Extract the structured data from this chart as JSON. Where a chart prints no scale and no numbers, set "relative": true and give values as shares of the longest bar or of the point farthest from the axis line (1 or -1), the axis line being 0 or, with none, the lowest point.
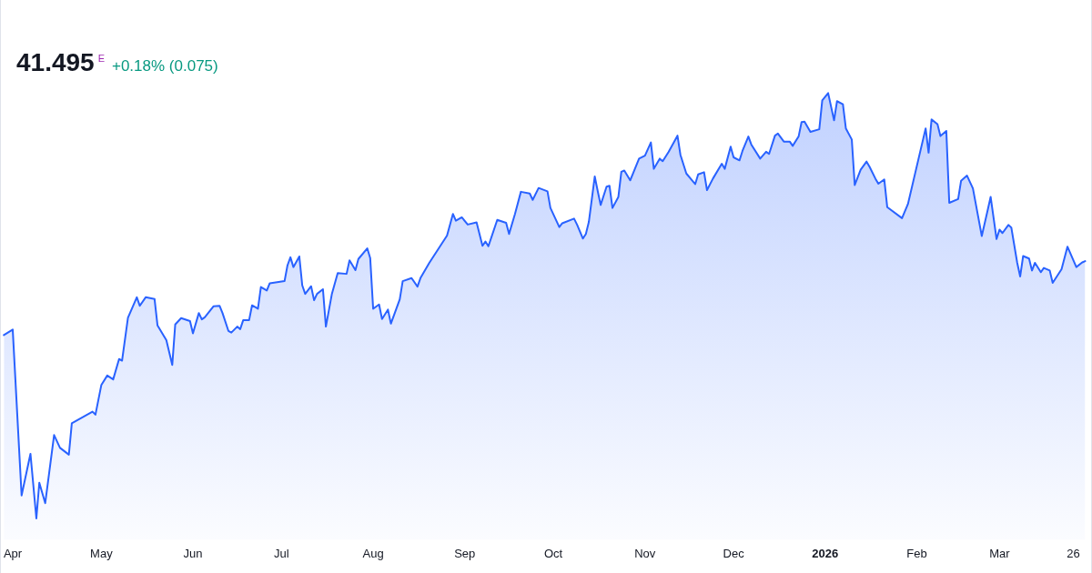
{
  "chart_data": {
    "type": "area",
    "title": "41.495$^{E}$",
    "subtitle": "+0.18% (0.075)",
    "relative": true,
    "color": "#2962ff",
    "xlim": [
      "2025-03-28",
      "2026-04-01"
    ],
    "xticks": [
      {
        "value": "2025-04-01",
        "label": "Apr"
      },
      {
        "value": "2025-05-01",
        "label": "May"
      },
      {
        "value": "2025-06-01",
        "label": "Jun"
      },
      {
        "value": "2025-07-01",
        "label": "Jul"
      },
      {
        "value": "2025-08-01",
        "label": "Aug"
      },
      {
        "value": "2025-09-01",
        "label": "Sep"
      },
      {
        "value": "2025-10-01",
        "label": "Oct"
      },
      {
        "value": "2025-11-01",
        "label": "Nov"
      },
      {
        "value": "2025-12-01",
        "label": "Dec"
      },
      {
        "value": "2026-01-01",
        "label": "2026"
      },
      {
        "value": "2026-02-01",
        "label": "Feb"
      },
      {
        "value": "2026-03-01",
        "label": "Mar"
      },
      {
        "value": "2026-03-26",
        "label": "26"
      }
    ],
    "x": [
      "2025-03-29",
      "2025-04-01",
      "2025-04-04",
      "2025-04-07",
      "2025-04-09",
      "2025-04-10",
      "2025-04-12",
      "2025-04-15",
      "2025-04-17",
      "2025-04-20",
      "2025-04-21",
      "2025-04-28",
      "2025-04-29",
      "2025-05-01",
      "2025-05-03",
      "2025-05-05",
      "2025-05-07",
      "2025-05-08",
      "2025-05-10",
      "2025-05-13",
      "2025-05-14",
      "2025-05-16",
      "2025-05-19",
      "2025-05-20",
      "2025-05-23",
      "2025-05-25",
      "2025-05-26",
      "2025-05-28",
      "2025-05-31",
      "2025-06-01",
      "2025-06-03",
      "2025-06-04",
      "2025-06-05",
      "2025-06-08",
      "2025-06-10",
      "2025-06-11",
      "2025-06-13",
      "2025-06-14",
      "2025-06-16",
      "2025-06-17",
      "2025-06-18",
      "2025-06-20",
      "2025-06-21",
      "2025-06-23",
      "2025-06-24",
      "2025-06-26",
      "2025-06-27",
      "2025-07-02",
      "2025-07-03",
      "2025-07-04",
      "2025-07-05",
      "2025-07-07",
      "2025-07-08",
      "2025-07-09",
      "2025-07-11",
      "2025-07-12",
      "2025-07-13",
      "2025-07-15",
      "2025-07-16",
      "2025-07-18",
      "2025-07-20",
      "2025-07-23",
      "2025-07-24",
      "2025-07-26",
      "2025-07-27",
      "2025-07-30",
      "2025-07-31",
      "2025-08-01",
      "2025-08-03",
      "2025-08-04",
      "2025-08-06",
      "2025-08-07",
      "2025-08-10",
      "2025-08-11",
      "2025-08-14",
      "2025-08-16",
      "2025-08-17",
      "2025-08-20",
      "2025-08-26",
      "2025-08-28",
      "2025-08-29",
      "2025-08-31",
      "2025-09-02",
      "2025-09-05",
      "2025-09-07",
      "2025-09-08",
      "2025-09-09",
      "2025-09-12",
      "2025-09-15",
      "2025-09-16",
      "2025-09-18",
      "2025-09-20",
      "2025-09-23",
      "2025-09-24",
      "2025-09-26",
      "2025-09-29",
      "2025-09-30",
      "2025-10-03",
      "2025-10-04",
      "2025-10-08",
      "2025-10-09",
      "2025-10-11",
      "2025-10-12",
      "2025-10-13",
      "2025-10-15",
      "2025-10-16",
      "2025-10-17",
      "2025-10-19",
      "2025-10-20",
      "2025-10-21",
      "2025-10-23",
      "2025-10-24",
      "2025-10-25",
      "2025-10-27",
      "2025-10-28",
      "2025-10-30",
      "2025-11-01",
      "2025-11-03",
      "2025-11-04",
      "2025-11-06",
      "2025-11-07",
      "2025-11-09",
      "2025-11-12",
      "2025-11-13",
      "2025-11-15",
      "2025-11-18",
      "2025-11-19",
      "2025-11-21",
      "2025-11-22",
      "2025-11-24",
      "2025-11-27",
      "2025-11-28",
      "2025-11-30",
      "2025-12-01",
      "2025-12-03",
      "2025-12-04",
      "2025-12-06",
      "2025-12-07",
      "2025-12-10",
      "2025-12-12",
      "2025-12-13",
      "2025-12-15",
      "2025-12-16",
      "2025-12-18",
      "2025-12-20",
      "2025-12-21",
      "2025-12-23",
      "2025-12-24",
      "2025-12-25",
      "2025-12-27",
      "2025-12-30",
      "2025-12-31",
      "2026-01-02",
      "2026-01-04",
      "2026-01-05",
      "2026-01-07",
      "2026-01-08",
      "2026-01-10",
      "2026-01-11",
      "2026-01-13",
      "2026-01-15",
      "2026-01-16",
      "2026-01-18",
      "2026-01-19",
      "2026-01-21",
      "2026-01-22",
      "2026-01-27",
      "2026-01-29",
      "2026-02-04",
      "2026-02-05",
      "2026-02-06",
      "2026-02-08",
      "2026-02-09",
      "2026-02-11",
      "2026-02-12",
      "2026-02-15",
      "2026-02-16",
      "2026-02-18",
      "2026-02-20",
      "2026-02-23",
      "2026-02-25",
      "2026-02-26",
      "2026-02-28",
      "2026-03-01",
      "2026-03-02",
      "2026-03-04",
      "2026-03-05",
      "2026-03-07",
      "2026-03-08",
      "2026-03-09",
      "2026-03-11",
      "2026-03-12",
      "2026-03-13",
      "2026-03-15",
      "2026-03-16",
      "2026-03-18",
      "2026-03-19",
      "2026-03-22",
      "2026-03-24",
      "2026-03-27",
      "2026-03-29",
      "2026-03-30"
    ],
    "values": [
      0.431,
      0.444,
      0.054,
      0.152,
      0,
      0.084,
      0.036,
      0.196,
      0.166,
      0.15,
      0.224,
      0.251,
      0.244,
      0.314,
      0.336,
      0.327,
      0.375,
      0.371,
      0.472,
      0.52,
      0.5,
      0.52,
      0.516,
      0.454,
      0.419,
      0.361,
      0.456,
      0.471,
      0.464,
      0.435,
      0.483,
      0.468,
      0.473,
      0.499,
      0.5,
      0.483,
      0.441,
      0.437,
      0.451,
      0.445,
      0.466,
      0.466,
      0.501,
      0.493,
      0.544,
      0.536,
      0.553,
      0.558,
      0.595,
      0.614,
      0.591,
      0.616,
      0.548,
      0.528,
      0.546,
      0.513,
      0.528,
      0.539,
      0.451,
      0.527,
      0.577,
      0.575,
      0.607,
      0.584,
      0.61,
      0.635,
      0.612,
      0.493,
      0.503,
      0.469,
      0.491,
      0.458,
      0.515,
      0.558,
      0.565,
      0.545,
      0.565,
      0.601,
      0.665,
      0.716,
      0.7,
      0.708,
      0.691,
      0.696,
      0.641,
      0.651,
      0.64,
      0.702,
      0.695,
      0.669,
      0.716,
      0.768,
      0.764,
      0.749,
      0.777,
      0.769,
      0.73,
      0.685,
      0.694,
      0.705,
      0.691,
      0.658,
      0.669,
      0.697,
      0.804,
      0.77,
      0.737,
      0.78,
      0.782,
      0.73,
      0.756,
      0.815,
      0.818,
      0.795,
      0.812,
      0.846,
      0.853,
      0.884,
      0.822,
      0.846,
      0.84,
      0.862,
      0.9,
      0.855,
      0.811,
      0.786,
      0.809,
      0.814,
      0.772,
      0.799,
      0.834,
      0.822,
      0.874,
      0.849,
      0.842,
      0.864,
      0.898,
      0.879,
      0.846,
      0.862,
      0.857,
      0.9,
      0.905,
      0.886,
      0.886,
      0.876,
      0.898,
      0.932,
      0.933,
      0.909,
      0.915,
      0.983,
      1,
      0.936,
      0.981,
      0.974,
      0.917,
      0.891,
      0.784,
      0.82,
      0.839,
      0.827,
      0.799,
      0.787,
      0.797,
      0.732,
      0.706,
      0.739,
      0.917,
      0.86,
      0.938,
      0.927,
      0.899,
      0.911,
      0.742,
      0.751,
      0.794,
      0.806,
      0.776,
      0.664,
      0.725,
      0.756,
      0.657,
      0.679,
      0.671,
      0.69,
      0.684,
      0.601,
      0.569,
      0.617,
      0.611,
      0.583,
      0.601,
      0.579,
      0.589,
      0.583,
      0.554,
      0.586,
      0.639,
      0.591,
      0.602,
      0.605
    ]
  }
}
